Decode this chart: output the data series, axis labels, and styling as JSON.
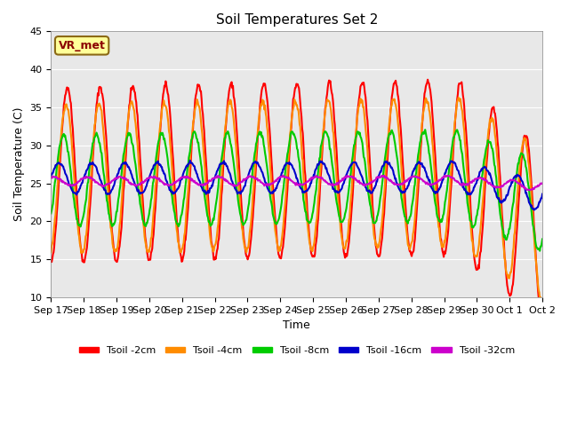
{
  "title": "Soil Temperatures Set 2",
  "xlabel": "Time",
  "ylabel": "Soil Temperature (C)",
  "ylim": [
    10,
    45
  ],
  "yticks": [
    10,
    15,
    20,
    25,
    30,
    35,
    40,
    45
  ],
  "xtick_labels": [
    "Sep 17",
    "Sep 18",
    "Sep 19",
    "Sep 20",
    "Sep 21",
    "Sep 22",
    "Sep 23",
    "Sep 24",
    "Sep 25",
    "Sep 26",
    "Sep 27",
    "Sep 28",
    "Sep 29",
    "Sep 30",
    "Oct 1",
    "Oct 2"
  ],
  "annotation_text": "VR_met",
  "annotation_color": "#8B0000",
  "annotation_bg": "#FFFF99",
  "annotation_border": "#8B6914",
  "series_keys": [
    "Tsoil -2cm",
    "Tsoil -4cm",
    "Tsoil -8cm",
    "Tsoil -16cm",
    "Tsoil -32cm"
  ],
  "series_colors": [
    "#FF0000",
    "#FF8C00",
    "#00CC00",
    "#0000CC",
    "#CC00CC"
  ],
  "series_lw": [
    1.5,
    1.5,
    1.5,
    1.5,
    1.5
  ],
  "bg_color": "#E8E8E8",
  "fig_bg": "#FFFFFF",
  "n_days": 16,
  "pts_per_day": 48
}
